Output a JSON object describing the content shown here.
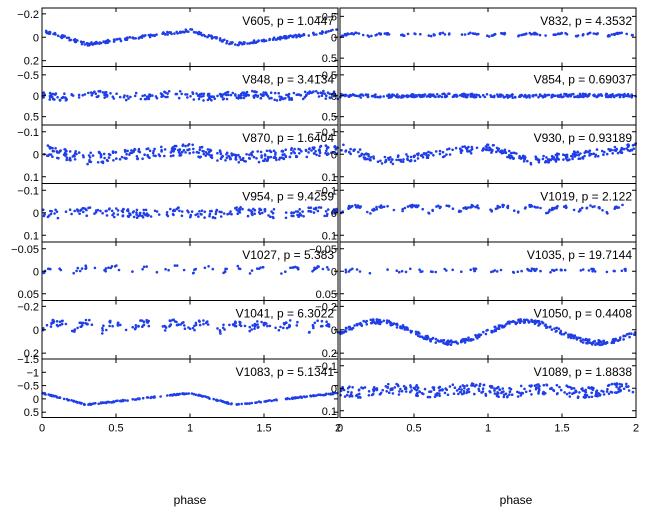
{
  "chart_data": {
    "type": "scatter",
    "xlabel": "phase",
    "x_ticks": [
      "0",
      "0.5",
      "1",
      "1.5",
      "2"
    ],
    "xlim": [
      0,
      2
    ],
    "marker_color": "#1f3ee8",
    "panels": [
      {
        "label": "V605, p = 1.0447",
        "ylim": [
          -0.25,
          0.25
        ],
        "yticks": [
          -0.2,
          0,
          0.2
        ],
        "ytick_labels": [
          "−0.2",
          "0",
          "0.2"
        ],
        "shape": "saw",
        "amp": 0.06,
        "offset": 0,
        "noise": 0.012,
        "n": 260
      },
      {
        "label": "V832, p = 4.3532",
        "ylim": [
          -0.7,
          0.7
        ],
        "yticks": [
          -0.5,
          0,
          0.5
        ],
        "ytick_labels": [
          "−0.5",
          "0",
          "0.5"
        ],
        "shape": "arcs",
        "amp": 0.07,
        "offset": -0.02,
        "noise": 0.02,
        "n": 180
      },
      {
        "label": "V848, p = 3.4134",
        "ylim": [
          -0.7,
          0.7
        ],
        "yticks": [
          -0.5,
          0,
          0.5
        ],
        "ytick_labels": [
          "−0.5",
          "0",
          "0.5"
        ],
        "shape": "noise",
        "amp": 0.05,
        "offset": 0,
        "noise": 0.09,
        "n": 260
      },
      {
        "label": "V854, p = 0.69037",
        "ylim": [
          -0.7,
          0.7
        ],
        "yticks": [
          -0.5,
          0,
          0.5
        ],
        "ytick_labels": [
          "−0.5",
          "0",
          "0.5"
        ],
        "shape": "flat",
        "amp": 0.02,
        "offset": 0,
        "noise": 0.04,
        "n": 340
      },
      {
        "label": "V870, p = 1.6404",
        "ylim": [
          -0.13,
          0.13
        ],
        "yticks": [
          -0.1,
          0,
          0.1
        ],
        "ytick_labels": [
          "−0.1",
          "0",
          "0.1"
        ],
        "shape": "saw",
        "amp": 0.02,
        "offset": 0,
        "noise": 0.025,
        "n": 320
      },
      {
        "label": "V930, p = 0.93189",
        "ylim": [
          -0.13,
          0.13
        ],
        "yticks": [
          -0.1,
          0,
          0.1
        ],
        "ytick_labels": [
          "−0.1",
          "0",
          "0.1"
        ],
        "shape": "saw",
        "amp": 0.03,
        "offset": 0,
        "noise": 0.018,
        "n": 300
      },
      {
        "label": "V954, p = 9.4259",
        "ylim": [
          -0.13,
          0.13
        ],
        "yticks": [
          -0.1,
          0,
          0.1
        ],
        "ytick_labels": [
          "−0.1",
          "0",
          "0.1"
        ],
        "shape": "noise",
        "amp": 0.01,
        "offset": 0,
        "noise": 0.02,
        "n": 220
      },
      {
        "label": "V1019, p = 2.122",
        "ylim": [
          -0.13,
          0.13
        ],
        "yticks": [
          -0.1,
          0,
          0.1
        ],
        "ytick_labels": [
          "−0.1",
          "0",
          "0.1"
        ],
        "shape": "arcs",
        "amp": 0.03,
        "offset": 0,
        "noise": 0.006,
        "n": 200
      },
      {
        "label": "V1027, p = 5.383",
        "ylim": [
          -0.065,
          0.065
        ],
        "yticks": [
          -0.05,
          0,
          0.05
        ],
        "ytick_labels": [
          "−0.05",
          "0",
          "0.05"
        ],
        "shape": "arcs",
        "amp": 0.012,
        "offset": 0.004,
        "noise": 0.005,
        "n": 110
      },
      {
        "label": "V1035, p = 19.7144",
        "ylim": [
          -0.065,
          0.065
        ],
        "yticks": [
          -0.05,
          0,
          0.05
        ],
        "ytick_labels": [
          "−0.05",
          "0",
          "0.05"
        ],
        "shape": "arcs",
        "amp": 0.006,
        "offset": 0.003,
        "noise": 0.003,
        "n": 110
      },
      {
        "label": "V1041, p = 6.3022",
        "ylim": [
          -0.25,
          0.25
        ],
        "yticks": [
          -0.2,
          0,
          0.2
        ],
        "ytick_labels": [
          "−0.2",
          "0",
          "0.2"
        ],
        "shape": "arcs",
        "amp": 0.07,
        "offset": 0.01,
        "noise": 0.03,
        "n": 240
      },
      {
        "label": "V1050, p = 0.4408",
        "ylim": [
          -0.25,
          0.25
        ],
        "yticks": [
          -0.2,
          0,
          0.2
        ],
        "ytick_labels": [
          "−0.2",
          "0",
          "0.2"
        ],
        "shape": "sine",
        "amp": 0.09,
        "offset": 0.02,
        "noise": 0.02,
        "n": 360
      },
      {
        "label": "V1083, p = 5.1341",
        "ylim": [
          -1.5,
          0.7
        ],
        "yticks": [
          -1.5,
          -1,
          -0.5,
          0,
          0.5
        ],
        "ytick_labels": [
          "−1.5",
          "−1",
          "−0.5",
          "0",
          "0.5"
        ],
        "shape": "saw",
        "amp": 0.22,
        "offset": 0,
        "noise": 0.02,
        "n": 220
      },
      {
        "label": "V1089, p = 1.8838",
        "ylim": [
          -0.13,
          0.13
        ],
        "yticks": [
          -0.1,
          0,
          0.1
        ],
        "ytick_labels": [
          "−0.1",
          "0",
          "0.1"
        ],
        "shape": "noise",
        "amp": 0.015,
        "offset": 0.01,
        "noise": 0.025,
        "n": 320
      }
    ]
  }
}
